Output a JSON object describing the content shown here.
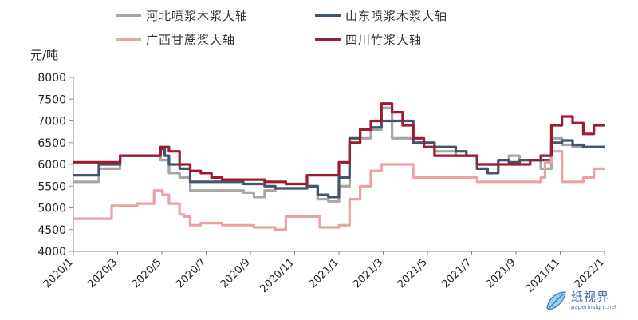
{
  "chart_data": {
    "type": "line",
    "title": "",
    "xlabel": "",
    "ylabel": "元/吨",
    "ylim": [
      4000,
      8000
    ],
    "yticks": [
      4000,
      4500,
      5000,
      5500,
      6000,
      6500,
      7000,
      7500,
      8000
    ],
    "xlim": [
      0,
      25
    ],
    "x_tick_labels": [
      "2020/1",
      "2020/3",
      "2020/5",
      "2020/7",
      "2020/9",
      "2020/11",
      "2021/1",
      "2021/3",
      "2021/5",
      "2021/7",
      "2021/9",
      "2021/11",
      "2022/1"
    ],
    "legend_position": "top",
    "grid": false,
    "series": [
      {
        "name": "河北喷浆木浆大轴",
        "color": "#a6a6a6",
        "points": [
          [
            0,
            5600
          ],
          [
            1,
            5600
          ],
          [
            1.2,
            5900
          ],
          [
            2,
            5900
          ],
          [
            2.2,
            6200
          ],
          [
            4,
            6200
          ],
          [
            4.1,
            6100
          ],
          [
            4.5,
            5800
          ],
          [
            5,
            5700
          ],
          [
            5.5,
            5400
          ],
          [
            7,
            5400
          ],
          [
            8,
            5350
          ],
          [
            8.5,
            5250
          ],
          [
            9,
            5400
          ],
          [
            9.5,
            5450
          ],
          [
            11,
            5500
          ],
          [
            11.5,
            5200
          ],
          [
            12,
            5150
          ],
          [
            12.5,
            5500
          ],
          [
            13,
            6500
          ],
          [
            13.5,
            6600
          ],
          [
            14,
            6800
          ],
          [
            14.5,
            7300
          ],
          [
            15,
            6600
          ],
          [
            16,
            6500
          ],
          [
            17,
            6300
          ],
          [
            18,
            6200
          ],
          [
            19,
            6000
          ],
          [
            20,
            6100
          ],
          [
            20.5,
            6200
          ],
          [
            21,
            6100
          ],
          [
            22,
            5900
          ],
          [
            22.5,
            6600
          ],
          [
            23,
            6450
          ],
          [
            23.5,
            6400
          ],
          [
            24,
            6400
          ],
          [
            25,
            6400
          ]
        ]
      },
      {
        "name": "山东喷浆木浆大轴",
        "color": "#44546a",
        "points": [
          [
            0,
            5750
          ],
          [
            1,
            5750
          ],
          [
            1.2,
            6000
          ],
          [
            2,
            6000
          ],
          [
            2.2,
            6200
          ],
          [
            4,
            6200
          ],
          [
            4.1,
            6350
          ],
          [
            4.3,
            6200
          ],
          [
            4.5,
            6000
          ],
          [
            5,
            5900
          ],
          [
            5.5,
            5600
          ],
          [
            7,
            5600
          ],
          [
            8,
            5550
          ],
          [
            9,
            5500
          ],
          [
            9.5,
            5450
          ],
          [
            11,
            5500
          ],
          [
            11.5,
            5300
          ],
          [
            12,
            5250
          ],
          [
            12.5,
            5700
          ],
          [
            13,
            6600
          ],
          [
            13.5,
            6800
          ],
          [
            14,
            6850
          ],
          [
            14.5,
            7000
          ],
          [
            15,
            7000
          ],
          [
            16,
            6500
          ],
          [
            17,
            6400
          ],
          [
            18,
            6300
          ],
          [
            18.5,
            6200
          ],
          [
            19,
            5900
          ],
          [
            19.5,
            5800
          ],
          [
            20,
            6100
          ],
          [
            20.5,
            6050
          ],
          [
            21,
            6100
          ],
          [
            22,
            6100
          ],
          [
            22.5,
            6500
          ],
          [
            23,
            6550
          ],
          [
            23.5,
            6450
          ],
          [
            24,
            6400
          ],
          [
            25,
            6400
          ]
        ]
      },
      {
        "name": "广西甘蔗浆大轴",
        "color": "#e9a3a3",
        "points": [
          [
            0,
            4750
          ],
          [
            1.5,
            4750
          ],
          [
            1.8,
            5050
          ],
          [
            2.7,
            5050
          ],
          [
            3,
            5100
          ],
          [
            3.7,
            5100
          ],
          [
            3.8,
            5400
          ],
          [
            4.2,
            5300
          ],
          [
            4.5,
            5100
          ],
          [
            5,
            4850
          ],
          [
            5.2,
            4800
          ],
          [
            5.5,
            4600
          ],
          [
            6,
            4650
          ],
          [
            7,
            4600
          ],
          [
            8.5,
            4550
          ],
          [
            9.5,
            4500
          ],
          [
            10,
            4800
          ],
          [
            11.5,
            4800
          ],
          [
            11.6,
            4550
          ],
          [
            12,
            4550
          ],
          [
            12.5,
            4600
          ],
          [
            13,
            5200
          ],
          [
            13.5,
            5500
          ],
          [
            14,
            5850
          ],
          [
            14.5,
            6000
          ],
          [
            15,
            6000
          ],
          [
            16,
            5700
          ],
          [
            17,
            5700
          ],
          [
            18,
            5700
          ],
          [
            19,
            5600
          ],
          [
            20,
            5600
          ],
          [
            21,
            5600
          ],
          [
            22,
            5700
          ],
          [
            22.2,
            6050
          ],
          [
            22.5,
            6300
          ],
          [
            23,
            5600
          ],
          [
            23.5,
            5600
          ],
          [
            24,
            5700
          ],
          [
            24.5,
            5900
          ],
          [
            25,
            5900
          ]
        ]
      },
      {
        "name": "四川竹浆大轴",
        "color": "#9e1b32",
        "points": [
          [
            0,
            6050
          ],
          [
            2,
            6050
          ],
          [
            2.2,
            6200
          ],
          [
            4,
            6200
          ],
          [
            4.1,
            6400
          ],
          [
            4.5,
            6300
          ],
          [
            5,
            6000
          ],
          [
            5.5,
            5850
          ],
          [
            6,
            5800
          ],
          [
            6.5,
            5700
          ],
          [
            7,
            5650
          ],
          [
            8,
            5650
          ],
          [
            9,
            5600
          ],
          [
            10,
            5550
          ],
          [
            11,
            5750
          ],
          [
            12,
            5750
          ],
          [
            12.5,
            6050
          ],
          [
            13,
            6500
          ],
          [
            13.5,
            6800
          ],
          [
            14,
            7000
          ],
          [
            14.5,
            7400
          ],
          [
            15,
            7200
          ],
          [
            15.5,
            6900
          ],
          [
            16,
            6600
          ],
          [
            16.5,
            6400
          ],
          [
            17,
            6200
          ],
          [
            18,
            6200
          ],
          [
            19,
            6000
          ],
          [
            20,
            6000
          ],
          [
            21,
            6000
          ],
          [
            21.5,
            6100
          ],
          [
            22,
            6200
          ],
          [
            22.5,
            6900
          ],
          [
            23,
            7100
          ],
          [
            23.5,
            6950
          ],
          [
            24,
            6700
          ],
          [
            24.5,
            6900
          ],
          [
            25,
            6900
          ]
        ]
      }
    ]
  },
  "logo": {
    "title": "纸视界",
    "subtitle": "paperinsight.net"
  }
}
